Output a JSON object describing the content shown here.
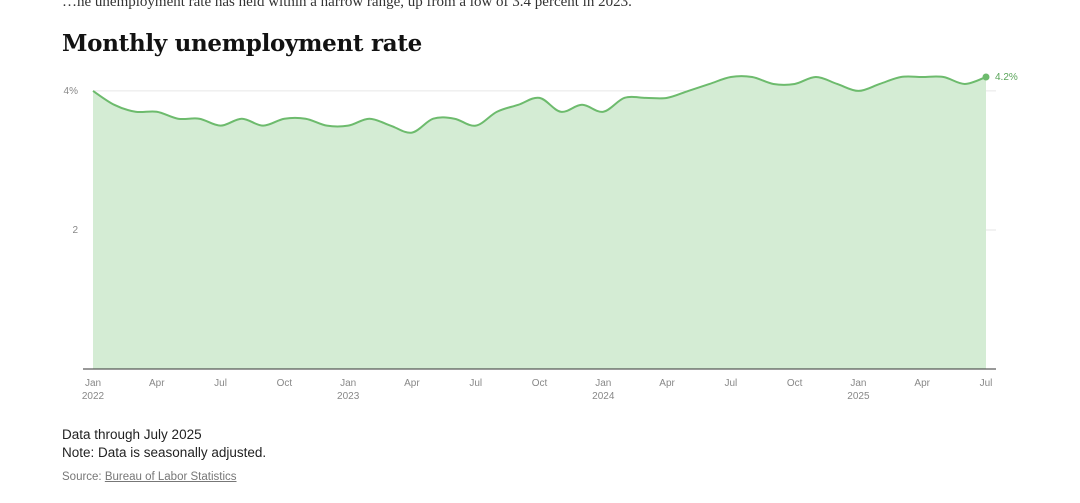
{
  "intro_text": "…he unemployment rate has held within a narrow range, up from a low of 3.4 percent in 2023.",
  "title": "Monthly unemployment rate",
  "notes": {
    "line1": "Data through July 2025",
    "line2": "Note: Data is seasonally adjusted."
  },
  "source": {
    "prefix": "Source: ",
    "link_text": "Bureau of Labor Statistics"
  },
  "colors": {
    "line": "#6dbb6d",
    "area": "#d4ecd4",
    "grid": "#e6e6e6",
    "axis": "#333333",
    "end_label": "#5aa55a"
  },
  "chart_data": {
    "type": "area",
    "title": "Monthly unemployment rate",
    "xlabel": "",
    "ylabel": "",
    "ylim": [
      0,
      4.2
    ],
    "yticks": [
      {
        "value": 4,
        "label": "4%"
      },
      {
        "value": 2,
        "label": "2"
      }
    ],
    "grid": true,
    "x": [
      "2022-01",
      "2022-02",
      "2022-03",
      "2022-04",
      "2022-05",
      "2022-06",
      "2022-07",
      "2022-08",
      "2022-09",
      "2022-10",
      "2022-11",
      "2022-12",
      "2023-01",
      "2023-02",
      "2023-03",
      "2023-04",
      "2023-05",
      "2023-06",
      "2023-07",
      "2023-08",
      "2023-09",
      "2023-10",
      "2023-11",
      "2023-12",
      "2024-01",
      "2024-02",
      "2024-03",
      "2024-04",
      "2024-05",
      "2024-06",
      "2024-07",
      "2024-08",
      "2024-09",
      "2024-10",
      "2024-11",
      "2024-12",
      "2025-01",
      "2025-02",
      "2025-03",
      "2025-04",
      "2025-05",
      "2025-06",
      "2025-07"
    ],
    "values": [
      4.0,
      3.8,
      3.7,
      3.7,
      3.6,
      3.6,
      3.5,
      3.6,
      3.5,
      3.6,
      3.6,
      3.5,
      3.5,
      3.6,
      3.5,
      3.4,
      3.6,
      3.6,
      3.5,
      3.7,
      3.8,
      3.9,
      3.7,
      3.8,
      3.7,
      3.9,
      3.9,
      3.9,
      4.0,
      4.1,
      4.2,
      4.2,
      4.1,
      4.1,
      4.2,
      4.1,
      4.0,
      4.1,
      4.2,
      4.2,
      4.2,
      4.1,
      4.2
    ],
    "xticks": [
      {
        "label": "Jan",
        "sub": "2022"
      },
      {
        "label": "Apr",
        "sub": ""
      },
      {
        "label": "Jul",
        "sub": ""
      },
      {
        "label": "Oct",
        "sub": ""
      },
      {
        "label": "Jan",
        "sub": "2023"
      },
      {
        "label": "Apr",
        "sub": ""
      },
      {
        "label": "Jul",
        "sub": ""
      },
      {
        "label": "Oct",
        "sub": ""
      },
      {
        "label": "Jan",
        "sub": "2024"
      },
      {
        "label": "Apr",
        "sub": ""
      },
      {
        "label": "Jul",
        "sub": ""
      },
      {
        "label": "Oct",
        "sub": ""
      },
      {
        "label": "Jan",
        "sub": "2025"
      },
      {
        "label": "Apr",
        "sub": ""
      },
      {
        "label": "Jul",
        "sub": ""
      }
    ],
    "end_label": "4.2%",
    "legend": "none"
  }
}
